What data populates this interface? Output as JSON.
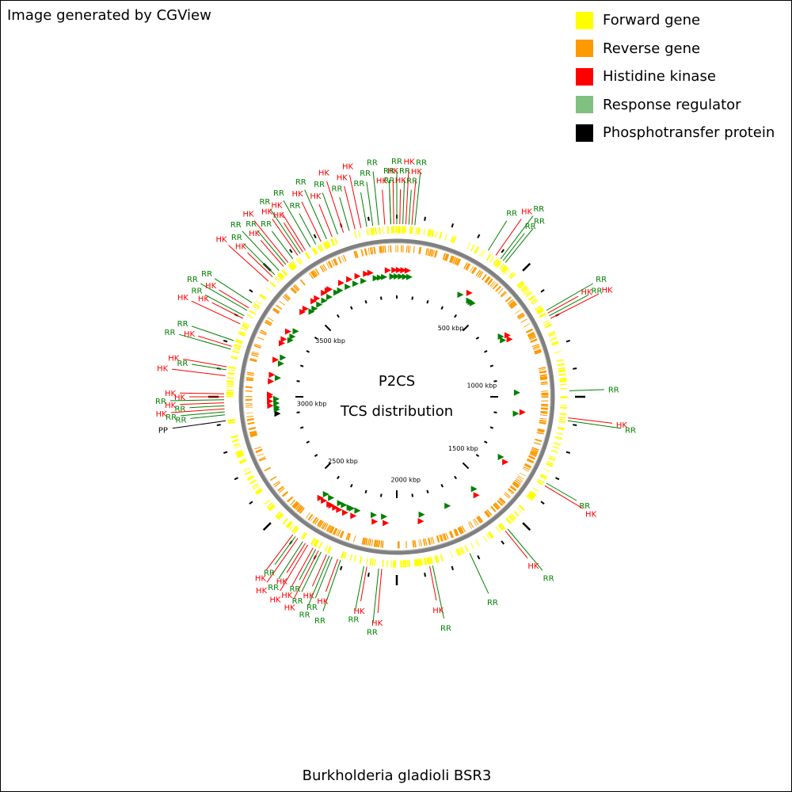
{
  "credit": "Image generated by CGView",
  "title": "P2CS",
  "subtitle": "TCS distribution",
  "footer": "Burkholderia gladioli BSR3",
  "legend": [
    {
      "label": "Forward gene",
      "color": "#ffff00"
    },
    {
      "label": "Reverse gene",
      "color": "#ff9900"
    },
    {
      "label": "Histidine kinase",
      "color": "#ff0000"
    },
    {
      "label": "Response regulator",
      "color": "#80c080"
    },
    {
      "label": "Phosphotransfer protein",
      "color": "#000000"
    }
  ],
  "colors": {
    "forward": "#ffff00",
    "reverse": "#ff9900",
    "hk": "#ff0000",
    "rr": "#008000",
    "pp": "#000000",
    "backbone": "#808080"
  },
  "ticks": [
    {
      "label": "500 kbp"
    },
    {
      "label": "1000 kbp"
    },
    {
      "label": "1500 kbp"
    },
    {
      "label": "2000 kbp"
    },
    {
      "label": "2500 kbp"
    },
    {
      "label": "3000 kbp"
    },
    {
      "label": "3500 kbp"
    }
  ],
  "features": [
    {
      "type": "RR",
      "deg": -92
    },
    {
      "type": "HK",
      "deg": -91
    },
    {
      "type": "RR",
      "deg": -90
    },
    {
      "type": "HK",
      "deg": -89
    },
    {
      "type": "RR",
      "deg": -88
    },
    {
      "type": "HK",
      "deg": -87
    },
    {
      "type": "RR",
      "deg": -86
    },
    {
      "type": "HK",
      "deg": -85
    },
    {
      "type": "RR",
      "deg": -84
    },
    {
      "type": "RR",
      "deg": -58
    },
    {
      "type": "HK",
      "deg": -55
    },
    {
      "type": "RR",
      "deg": -53
    },
    {
      "type": "RR",
      "deg": -52
    },
    {
      "type": "RR",
      "deg": -51
    },
    {
      "type": "RR",
      "deg": -30
    },
    {
      "type": "HK",
      "deg": -29
    },
    {
      "type": "RR",
      "deg": -28
    },
    {
      "type": "HK",
      "deg": -27
    },
    {
      "type": "RR",
      "deg": -2
    },
    {
      "type": "HK",
      "deg": 7
    },
    {
      "type": "RR",
      "deg": 8
    },
    {
      "type": "RR",
      "deg": 30
    },
    {
      "type": "HK",
      "deg": 31
    },
    {
      "type": "RR",
      "deg": 50
    },
    {
      "type": "HK",
      "deg": 51
    },
    {
      "type": "RR",
      "deg": 65
    },
    {
      "type": "RR",
      "deg": 78
    },
    {
      "type": "HK",
      "deg": 79
    },
    {
      "type": "HK",
      "deg": 95
    },
    {
      "type": "RR",
      "deg": 96
    },
    {
      "type": "HK",
      "deg": 100
    },
    {
      "type": "RR",
      "deg": 101
    },
    {
      "type": "RR",
      "deg": 109
    },
    {
      "type": "HK",
      "deg": 110
    },
    {
      "type": "RR",
      "deg": 112
    },
    {
      "type": "RR",
      "deg": 113
    },
    {
      "type": "HK",
      "deg": 114
    },
    {
      "type": "RR",
      "deg": 116
    },
    {
      "type": "HK",
      "deg": 117
    },
    {
      "type": "RR",
      "deg": 118
    },
    {
      "type": "HK",
      "deg": 119
    },
    {
      "type": "HK",
      "deg": 121
    },
    {
      "type": "HK",
      "deg": 122
    },
    {
      "type": "RR",
      "deg": 123
    },
    {
      "type": "HK",
      "deg": 125
    },
    {
      "type": "RR",
      "deg": 126
    },
    {
      "type": "HK",
      "deg": 127
    },
    {
      "type": "PP",
      "deg": 172
    },
    {
      "type": "RR",
      "deg": 174
    },
    {
      "type": "RR",
      "deg": 175
    },
    {
      "type": "HK",
      "deg": 176
    },
    {
      "type": "RR",
      "deg": 177
    },
    {
      "type": "HK",
      "deg": 178
    },
    {
      "type": "RR",
      "deg": 179
    },
    {
      "type": "HK",
      "deg": 180
    },
    {
      "type": "HK",
      "deg": 181
    },
    {
      "type": "HK",
      "deg": 187
    },
    {
      "type": "RR",
      "deg": 189
    },
    {
      "type": "HK",
      "deg": 190
    },
    {
      "type": "RR",
      "deg": 196
    },
    {
      "type": "HK",
      "deg": 197
    },
    {
      "type": "RR",
      "deg": 199
    },
    {
      "type": "HK",
      "deg": 205
    },
    {
      "type": "HK",
      "deg": 207
    },
    {
      "type": "RR",
      "deg": 208
    },
    {
      "type": "RR",
      "deg": 210
    },
    {
      "type": "HK",
      "deg": 211
    },
    {
      "type": "RR",
      "deg": 213
    },
    {
      "type": "HK",
      "deg": 222
    },
    {
      "type": "HK",
      "deg": 224
    },
    {
      "type": "RR",
      "deg": 225
    },
    {
      "type": "RR",
      "deg": 227
    },
    {
      "type": "HK",
      "deg": 229
    },
    {
      "type": "RR",
      "deg": 230
    },
    {
      "type": "HK",
      "deg": 231
    },
    {
      "type": "RR",
      "deg": 233
    },
    {
      "type": "HK",
      "deg": 235
    },
    {
      "type": "RR",
      "deg": 236
    },
    {
      "type": "HK",
      "deg": 237
    },
    {
      "type": "HK",
      "deg": 238
    },
    {
      "type": "RR",
      "deg": 240
    },
    {
      "type": "RR",
      "deg": 242
    },
    {
      "type": "HK",
      "deg": 244
    },
    {
      "type": "RR",
      "deg": 246
    },
    {
      "type": "HK",
      "deg": 248
    },
    {
      "type": "RR",
      "deg": 250
    },
    {
      "type": "HK",
      "deg": 252
    },
    {
      "type": "RR",
      "deg": 254
    },
    {
      "type": "HK",
      "deg": 256
    },
    {
      "type": "HK",
      "deg": 258
    },
    {
      "type": "RR",
      "deg": 260
    },
    {
      "type": "RR",
      "deg": 262
    },
    {
      "type": "RR",
      "deg": 264
    },
    {
      "type": "HK",
      "deg": 266
    },
    {
      "type": "RR",
      "deg": 268
    }
  ]
}
